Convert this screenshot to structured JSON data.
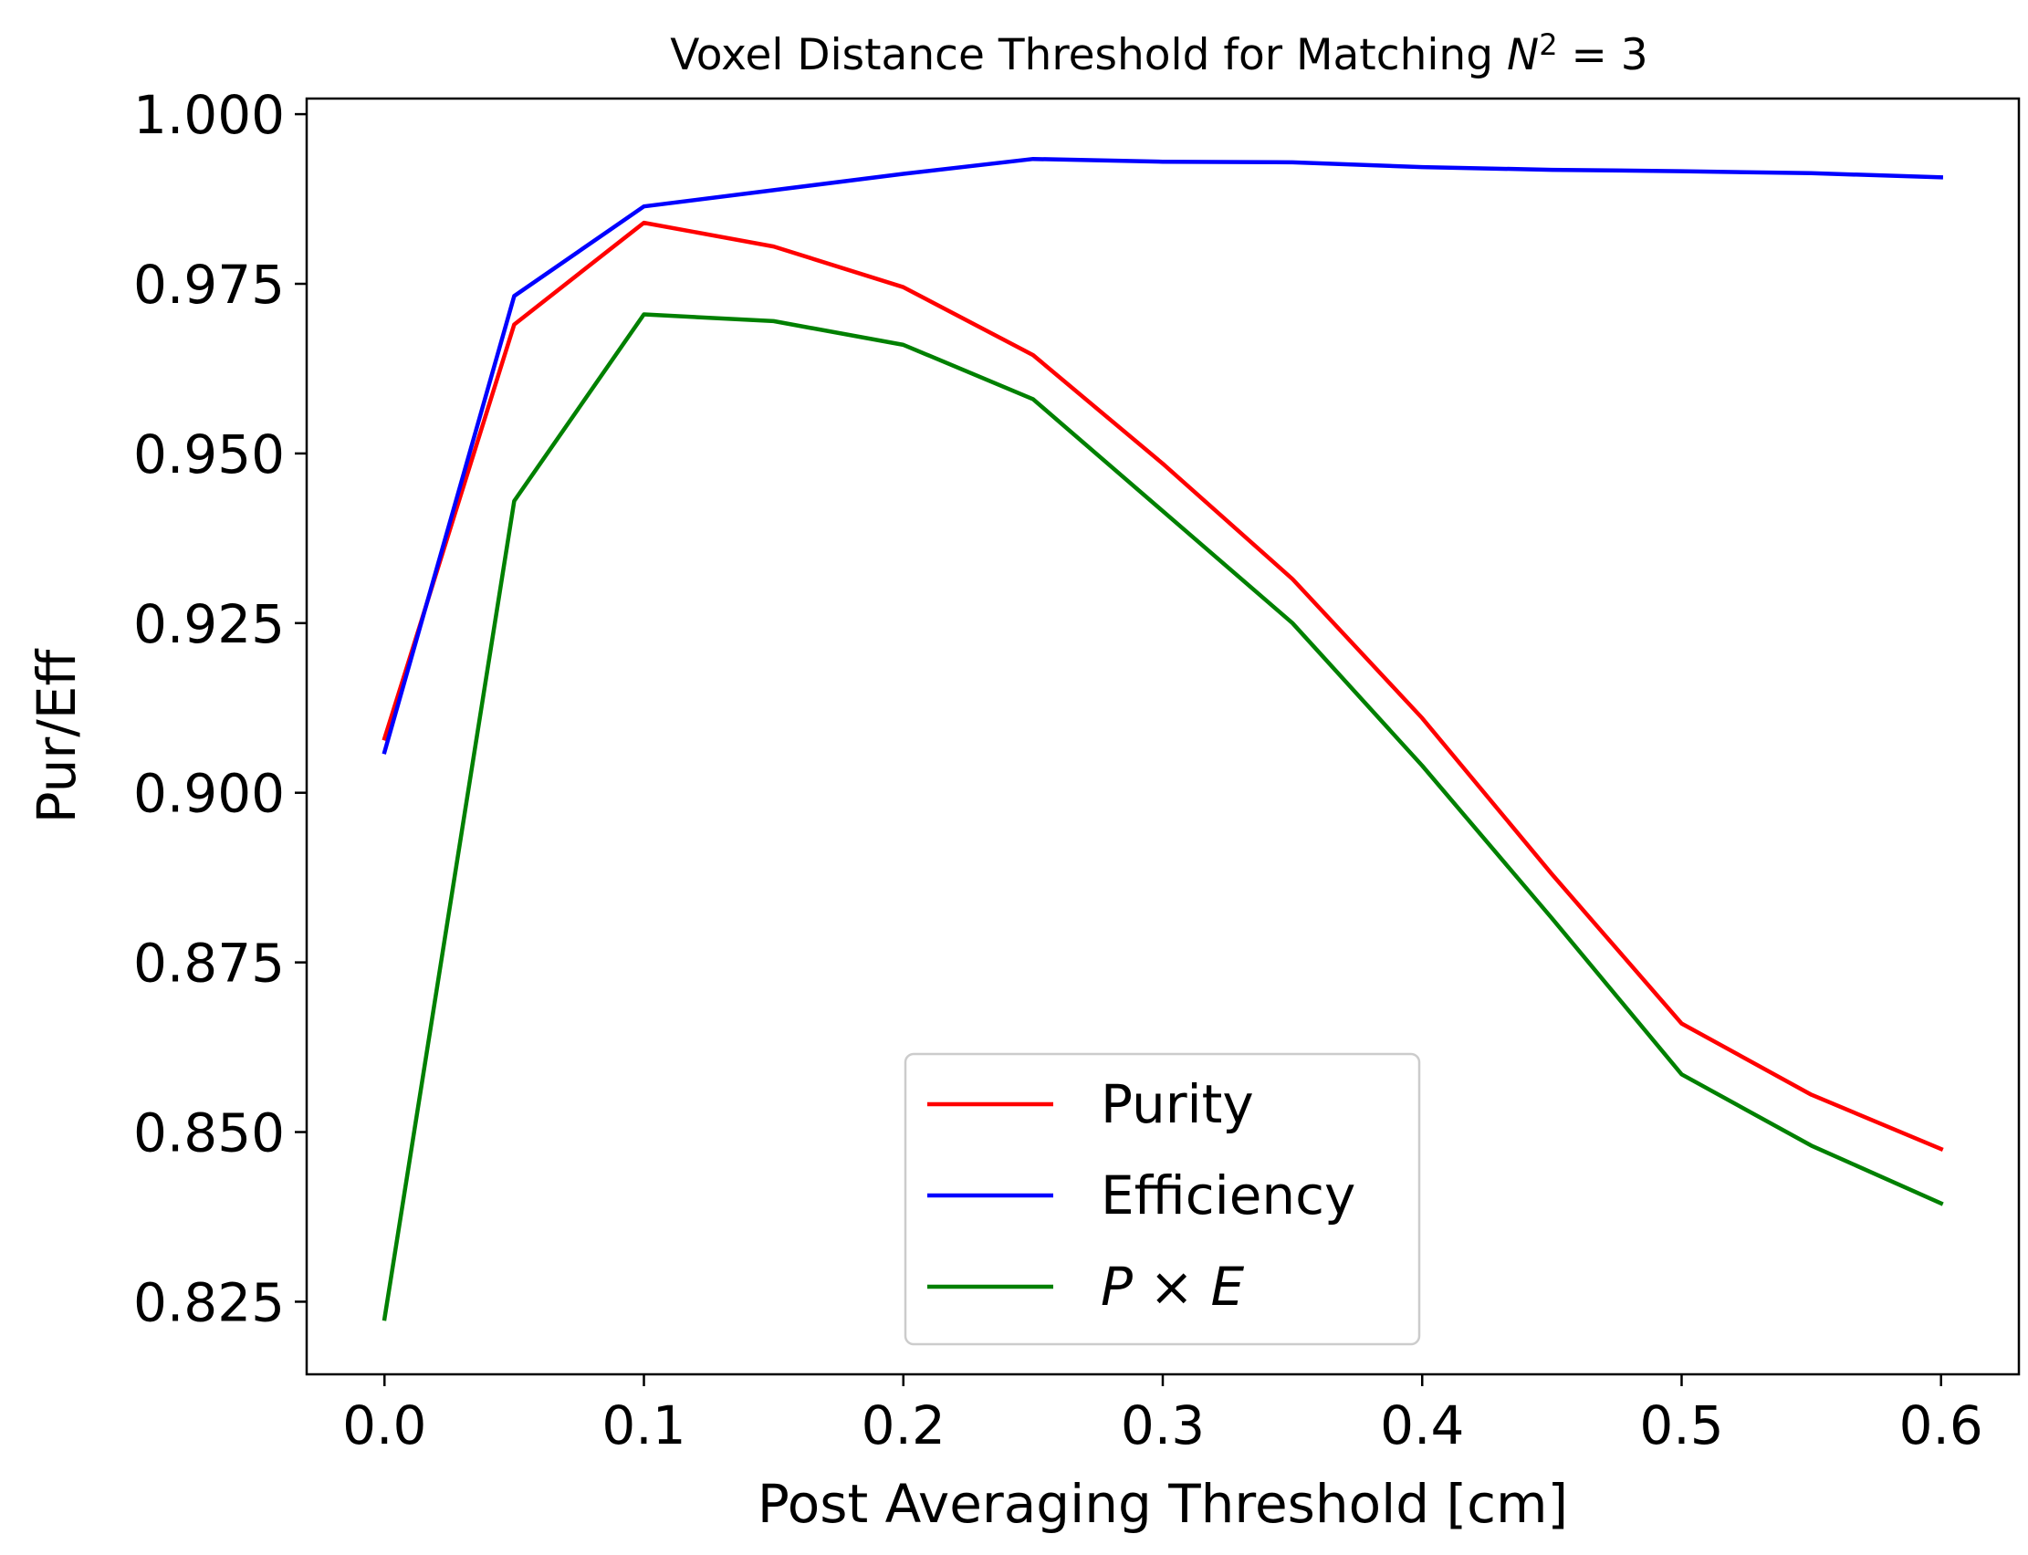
{
  "chart_data": {
    "type": "line",
    "title": "Voxel Distance Threshold for Matching",
    "title_math": {
      "base": "N",
      "sup": "2",
      "rest": " = 3"
    },
    "xlabel": "Post Averaging Threshold [cm]",
    "ylabel": "Pur/Eff",
    "xlim": [
      -0.03,
      0.63
    ],
    "ylim": [
      0.8143,
      1.0023
    ],
    "xticks": [
      0.0,
      0.1,
      0.2,
      0.3,
      0.4,
      0.5,
      0.6
    ],
    "xtick_labels": [
      "0.0",
      "0.1",
      "0.2",
      "0.3",
      "0.4",
      "0.5",
      "0.6"
    ],
    "yticks": [
      0.825,
      0.85,
      0.875,
      0.9,
      0.925,
      0.95,
      0.975,
      1.0
    ],
    "ytick_labels": [
      "0.825",
      "0.850",
      "0.875",
      "0.900",
      "0.925",
      "0.950",
      "0.975",
      "1.000"
    ],
    "grid": false,
    "legend_position": "lower-center",
    "x": [
      0.0,
      0.05,
      0.1,
      0.15,
      0.2,
      0.25,
      0.3,
      0.35,
      0.4,
      0.45,
      0.5,
      0.55,
      0.6
    ],
    "series": [
      {
        "name": "Purity",
        "color": "#ff0000",
        "values": [
          0.908,
          0.969,
          0.984,
          0.9805,
          0.9745,
          0.9645,
          0.9485,
          0.9315,
          0.911,
          0.888,
          0.866,
          0.8555,
          0.8475
        ]
      },
      {
        "name": "Efficiency",
        "color": "#0000ff",
        "values": [
          0.906,
          0.9732,
          0.9864,
          0.9888,
          0.9912,
          0.9934,
          0.993,
          0.9929,
          0.9922,
          0.9918,
          0.9916,
          0.9913,
          0.9907
        ]
      },
      {
        "name": "P × E",
        "name_math": {
          "a": "P",
          "op": " × ",
          "b": "E"
        },
        "color": "#008000",
        "values": [
          0.8225,
          0.943,
          0.9705,
          0.9695,
          0.966,
          0.958,
          0.9415,
          0.925,
          0.904,
          0.8815,
          0.8585,
          0.848,
          0.8395
        ]
      }
    ]
  }
}
